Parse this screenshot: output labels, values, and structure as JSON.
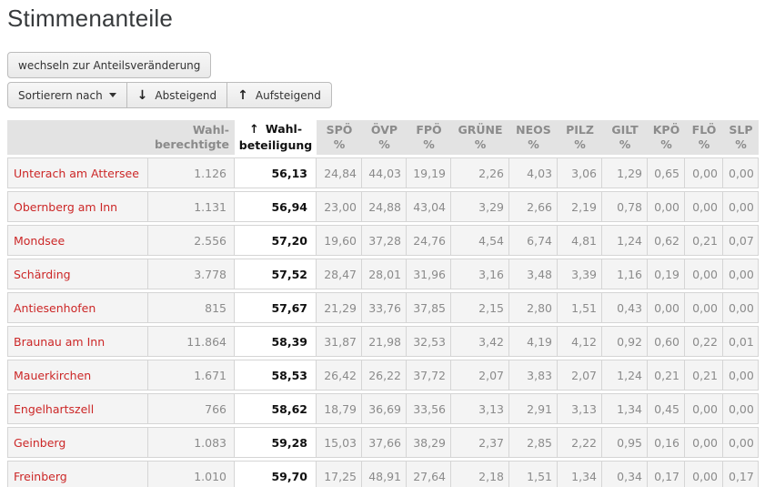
{
  "page": {
    "title": "Stimmenanteile"
  },
  "toolbar": {
    "switch_label": "wechseln zur Anteilsveränderung",
    "sort_by_label": "Sortierern nach",
    "caret_icon": "caret-down",
    "descending_icon": "↓",
    "descending_label": "Absteigend",
    "ascending_icon": "↑",
    "ascending_label": "Aufsteigend"
  },
  "table": {
    "header": {
      "municipality": "",
      "eligible_lines": [
        "Wahl-",
        "berechtigte"
      ],
      "turnout_lines": [
        "Wahl-",
        "beteiligung"
      ],
      "turnout_sort_icon": "↑",
      "unit": "%",
      "parties": [
        "SPÖ",
        "ÖVP",
        "FPÖ",
        "GRÜNE",
        "NEOS",
        "PILZ",
        "GILT",
        "KPÖ",
        "FLÖ",
        "SLP"
      ]
    },
    "sorted_column": "Wahl-beteiligung",
    "sort_direction": "aufsteigend",
    "rows": [
      {
        "name": "Unterach am Attersee",
        "eligible": "1.126",
        "turnout": "56,13",
        "shares": [
          "24,84",
          "44,03",
          "19,19",
          "2,26",
          "4,03",
          "3,06",
          "1,29",
          "0,65",
          "0,00",
          "0,00"
        ]
      },
      {
        "name": "Obernberg am Inn",
        "eligible": "1.131",
        "turnout": "56,94",
        "shares": [
          "23,00",
          "24,88",
          "43,04",
          "3,29",
          "2,66",
          "2,19",
          "0,78",
          "0,00",
          "0,00",
          "0,00"
        ]
      },
      {
        "name": "Mondsee",
        "eligible": "2.556",
        "turnout": "57,20",
        "shares": [
          "19,60",
          "37,28",
          "24,76",
          "4,54",
          "6,74",
          "4,81",
          "1,24",
          "0,62",
          "0,21",
          "0,07"
        ]
      },
      {
        "name": "Schärding",
        "eligible": "3.778",
        "turnout": "57,52",
        "shares": [
          "28,47",
          "28,01",
          "31,96",
          "3,16",
          "3,48",
          "3,39",
          "1,16",
          "0,19",
          "0,00",
          "0,00"
        ]
      },
      {
        "name": "Antiesenhofen",
        "eligible": "815",
        "turnout": "57,67",
        "shares": [
          "21,29",
          "33,76",
          "37,85",
          "2,15",
          "2,80",
          "1,51",
          "0,43",
          "0,00",
          "0,00",
          "0,00"
        ]
      },
      {
        "name": "Braunau am Inn",
        "eligible": "11.864",
        "turnout": "58,39",
        "shares": [
          "31,87",
          "21,98",
          "32,53",
          "3,42",
          "4,19",
          "4,12",
          "0,92",
          "0,60",
          "0,22",
          "0,01"
        ]
      },
      {
        "name": "Mauerkirchen",
        "eligible": "1.671",
        "turnout": "58,53",
        "shares": [
          "26,42",
          "26,22",
          "37,72",
          "2,07",
          "3,83",
          "2,07",
          "1,24",
          "0,21",
          "0,21",
          "0,00"
        ]
      },
      {
        "name": "Engelhartszell",
        "eligible": "766",
        "turnout": "58,62",
        "shares": [
          "18,79",
          "36,69",
          "33,56",
          "3,13",
          "2,91",
          "3,13",
          "1,34",
          "0,45",
          "0,00",
          "0,00"
        ]
      },
      {
        "name": "Geinberg",
        "eligible": "1.083",
        "turnout": "59,28",
        "shares": [
          "15,03",
          "37,66",
          "38,29",
          "2,37",
          "2,85",
          "2,22",
          "0,95",
          "0,16",
          "0,00",
          "0,00"
        ]
      },
      {
        "name": "Freinberg",
        "eligible": "1.010",
        "turnout": "59,70",
        "shares": [
          "17,25",
          "48,91",
          "27,64",
          "2,18",
          "1,51",
          "1,34",
          "0,34",
          "0,17",
          "0,00",
          "0,17"
        ]
      }
    ]
  },
  "colors": {
    "municipality_link": "#cc2727",
    "muted_text": "#8b8b8b",
    "header_bg": "#e3e3e3",
    "row_bg": "#f4f4f4",
    "sorted_col_bg": "#ffffff",
    "border": "#d5d5d5",
    "title_text": "#373a3c"
  }
}
